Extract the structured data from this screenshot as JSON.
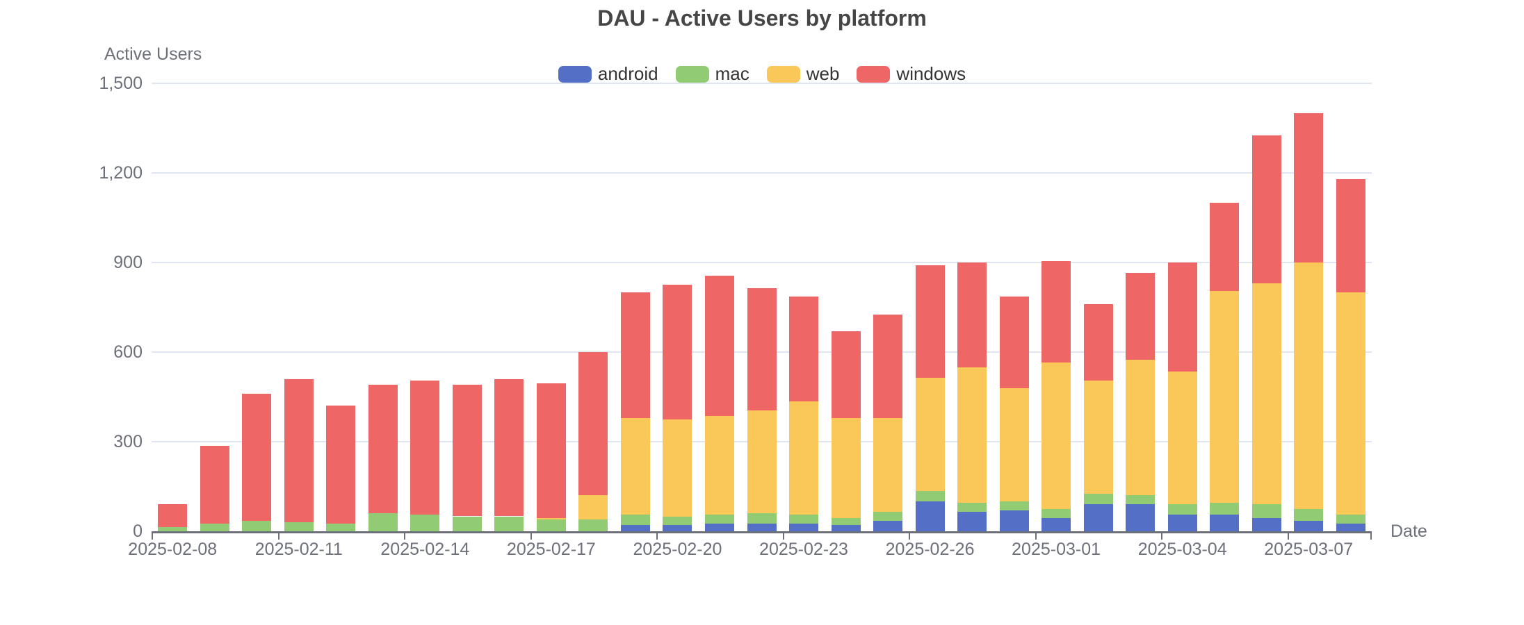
{
  "title": "DAU - Active Users by platform",
  "chart_data": {
    "type": "bar",
    "stacked": true,
    "title": "DAU - Active Users by platform",
    "xlabel": "Date",
    "ylabel": "Active Users",
    "ylim": [
      0,
      1500
    ],
    "y_ticks": [
      0,
      300,
      600,
      900,
      1200,
      1500
    ],
    "y_tick_labels": [
      "0",
      "300",
      "600",
      "900",
      "1,200",
      "1,500"
    ],
    "x_label_interval": 3,
    "grid": true,
    "legend_position": "top",
    "categories": [
      "2025-02-08",
      "2025-02-09",
      "2025-02-10",
      "2025-02-11",
      "2025-02-12",
      "2025-02-13",
      "2025-02-14",
      "2025-02-15",
      "2025-02-16",
      "2025-02-17",
      "2025-02-18",
      "2025-02-19",
      "2025-02-20",
      "2025-02-21",
      "2025-02-22",
      "2025-02-23",
      "2025-02-24",
      "2025-02-25",
      "2025-02-26",
      "2025-02-27",
      "2025-02-28",
      "2025-03-01",
      "2025-03-02",
      "2025-03-03",
      "2025-03-04",
      "2025-03-05",
      "2025-03-06",
      "2025-03-07",
      "2025-03-08"
    ],
    "series": [
      {
        "name": "android",
        "color": "#5470C6",
        "values": [
          0,
          0,
          0,
          0,
          0,
          0,
          0,
          0,
          0,
          0,
          0,
          20,
          20,
          25,
          25,
          25,
          20,
          35,
          100,
          65,
          70,
          45,
          90,
          90,
          55,
          55,
          45,
          35,
          25
        ]
      },
      {
        "name": "mac",
        "color": "#91CC75",
        "values": [
          15,
          25,
          35,
          30,
          25,
          60,
          55,
          50,
          50,
          40,
          40,
          35,
          30,
          30,
          35,
          30,
          25,
          30,
          35,
          30,
          30,
          30,
          35,
          30,
          35,
          40,
          45,
          40,
          30
        ]
      },
      {
        "name": "web",
        "color": "#FAC858",
        "values": [
          0,
          0,
          0,
          0,
          0,
          0,
          0,
          0,
          0,
          5,
          80,
          325,
          325,
          330,
          345,
          380,
          335,
          315,
          380,
          455,
          380,
          490,
          380,
          455,
          445,
          710,
          740,
          825,
          745
        ]
      },
      {
        "name": "windows",
        "color": "#EE6666",
        "values": [
          75,
          260,
          425,
          480,
          395,
          430,
          450,
          440,
          460,
          450,
          480,
          420,
          450,
          470,
          410,
          350,
          290,
          345,
          375,
          350,
          305,
          340,
          255,
          290,
          365,
          295,
          495,
          500,
          380
        ]
      }
    ]
  },
  "style_colors": {
    "grid_line": "#E0E6F1",
    "axis_line": "#6E7079",
    "axis_text": "#6E7079",
    "title_text": "#464646",
    "legend_text": "#333333",
    "background": "#FFFFFF"
  }
}
